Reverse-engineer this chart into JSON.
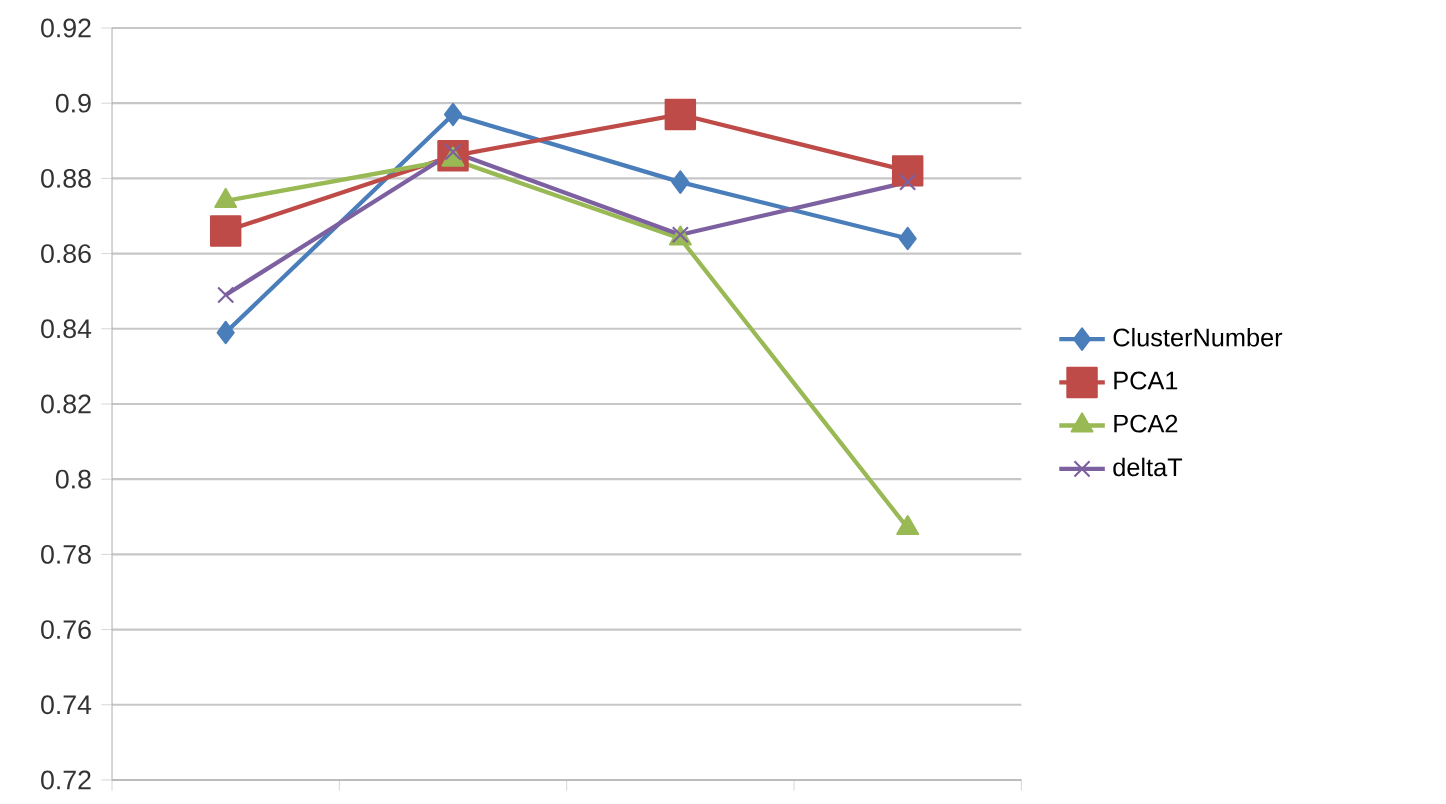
{
  "chart_data": {
    "type": "line",
    "categories": [
      null,
      null,
      null,
      null
    ],
    "series": [
      {
        "name": "ClusterNumber",
        "color": "#4a7ebb",
        "marker": "diamond",
        "values": [
          0.839,
          0.897,
          0.879,
          0.864
        ]
      },
      {
        "name": "PCA1",
        "color": "#be4b48",
        "marker": "square",
        "values": [
          0.866,
          0.886,
          0.897,
          0.882
        ]
      },
      {
        "name": "PCA2",
        "color": "#98b954",
        "marker": "triangle",
        "values": [
          0.874,
          0.885,
          0.864,
          0.787
        ]
      },
      {
        "name": "deltaT",
        "color": "#7d60a0",
        "marker": "cross",
        "values": [
          0.849,
          0.887,
          0.865,
          0.879
        ]
      }
    ],
    "ylim": [
      0.72,
      0.92
    ],
    "yticks": [
      0.72,
      0.74,
      0.76,
      0.78,
      0.8,
      0.82,
      0.84,
      0.86,
      0.88,
      0.9,
      0.92
    ],
    "grid": "y",
    "legend": "right",
    "tick_labels": "y",
    "line_style": "solid"
  }
}
